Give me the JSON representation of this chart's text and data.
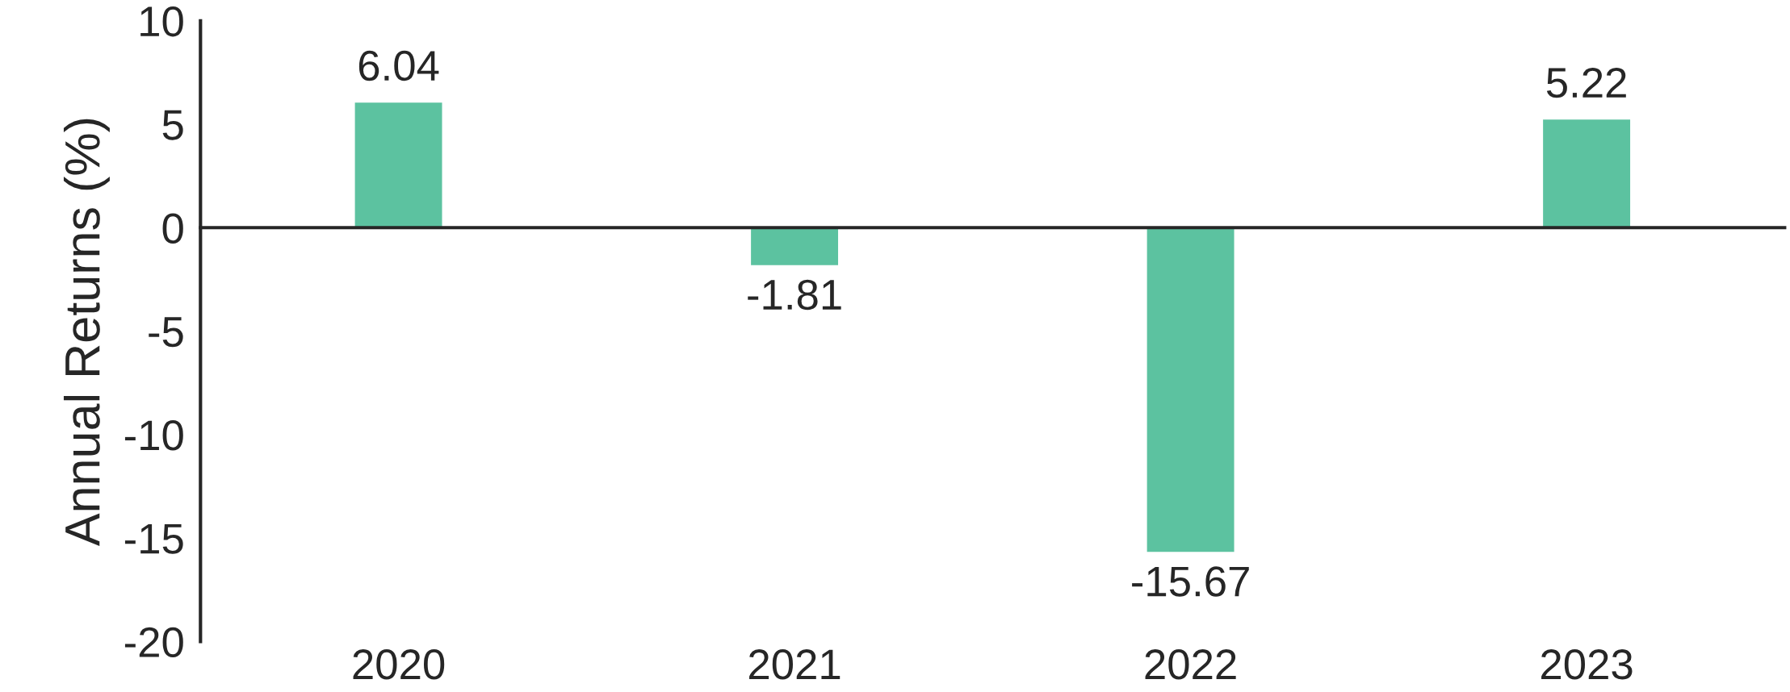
{
  "chart_data": {
    "type": "bar",
    "ylabel": "Annual Returns (%)",
    "categories": [
      "2020",
      "2021",
      "2022",
      "2023"
    ],
    "values": [
      6.04,
      -1.81,
      -15.67,
      5.22
    ],
    "color": "#5cc2a0",
    "ylim": [
      -20,
      10
    ],
    "yticks": [
      -20,
      -15,
      -10,
      -5,
      0,
      5,
      10
    ],
    "data_labels": true,
    "legend": false
  }
}
